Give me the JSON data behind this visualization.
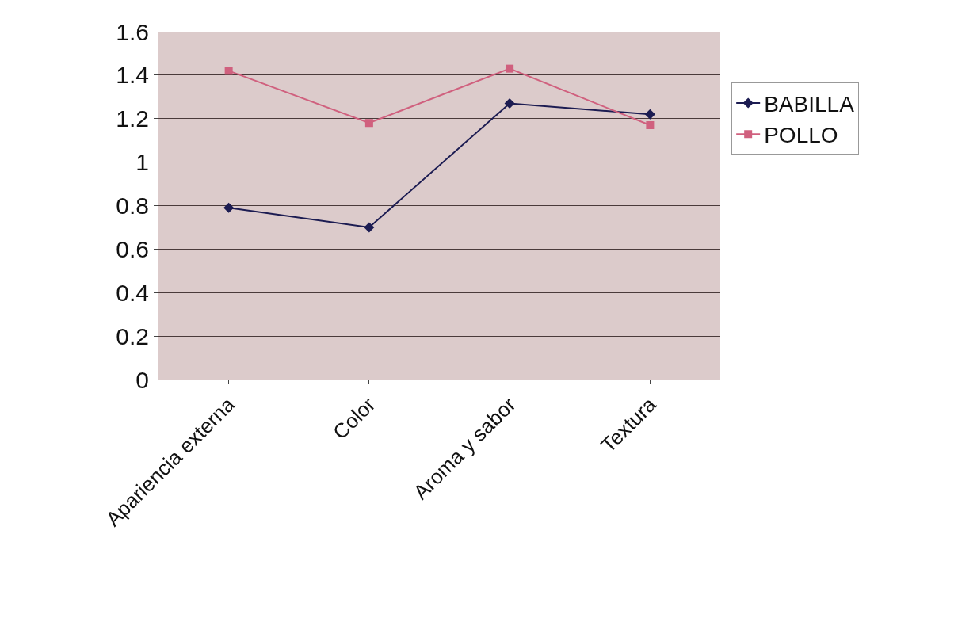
{
  "chart_data": {
    "type": "line",
    "categories": [
      "Apariencia externa",
      "Color",
      "Aroma y sabor",
      "Textura"
    ],
    "series": [
      {
        "name": "BABILLA",
        "color": "#1c1c52",
        "marker": "diamond",
        "values": [
          0.79,
          0.7,
          1.27,
          1.22
        ]
      },
      {
        "name": "POLLO",
        "color": "#d0607e",
        "marker": "square",
        "values": [
          1.42,
          1.18,
          1.43,
          1.17
        ]
      }
    ],
    "ylim": [
      0,
      1.6
    ],
    "yticks": [
      0,
      0.2,
      0.4,
      0.6,
      0.8,
      1,
      1.2,
      1.4,
      1.6
    ],
    "grid": "y",
    "legend": "right",
    "line_style": "solid"
  }
}
